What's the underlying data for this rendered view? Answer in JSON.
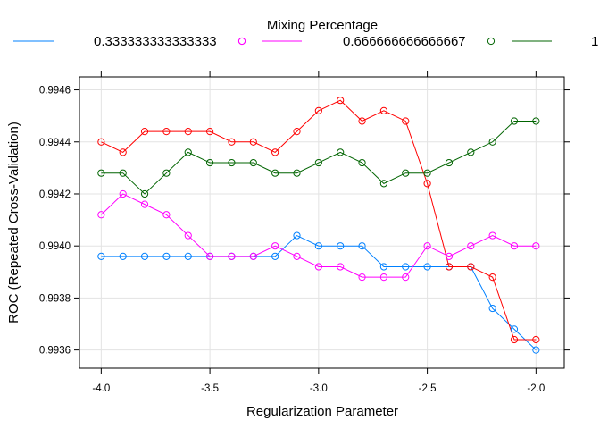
{
  "chart_data": {
    "type": "line",
    "xlabel": "Regularization Parameter",
    "ylabel": "ROC (Repeated Cross-Validation)",
    "legend_title": "Mixing Percentage",
    "legend_position": "top",
    "grid": true,
    "xlim": [
      -4.1,
      -1.87
    ],
    "ylim": [
      0.99353,
      0.99465
    ],
    "x_ticks": [
      -4.0,
      -3.5,
      -3.0,
      -2.5,
      -2.0
    ],
    "x_tick_labels": [
      "-4.0",
      "-3.5",
      "-3.0",
      "-2.5",
      "-2.0"
    ],
    "y_ticks": [
      0.9936,
      0.9938,
      0.994,
      0.9942,
      0.9944,
      0.9946
    ],
    "y_tick_labels": [
      "0.9936",
      "0.9938",
      "0.9940",
      "0.9942",
      "0.9944",
      "0.9946"
    ],
    "x": [
      -4.0,
      -3.9,
      -3.8,
      -3.7,
      -3.6,
      -3.5,
      -3.4,
      -3.3,
      -3.2,
      -3.1,
      -3.0,
      -2.9,
      -2.8,
      -2.7,
      -2.6,
      -2.5,
      -2.4,
      -2.3,
      -2.2,
      -2.1,
      -2.0
    ],
    "series": [
      {
        "name": "0.333333333333333",
        "color": "#0080ff",
        "values": [
          0.99396,
          0.99396,
          0.99396,
          0.99396,
          0.99396,
          0.99396,
          0.99396,
          0.99396,
          0.99396,
          0.99404,
          0.994,
          0.994,
          0.994,
          0.99392,
          0.99392,
          0.99392,
          0.99392,
          0.99392,
          0.99376,
          0.99368,
          0.9936
        ]
      },
      {
        "name": "0.666666666666667",
        "color": "#ff00ff",
        "values": [
          0.99412,
          0.9942,
          0.99416,
          0.99412,
          0.99404,
          0.99396,
          0.99396,
          0.99396,
          0.994,
          0.99396,
          0.99392,
          0.99392,
          0.99388,
          0.99388,
          0.99388,
          0.994,
          0.99396,
          0.994,
          0.99404,
          0.994,
          0.994
        ]
      },
      {
        "name": "1",
        "color": "#006400",
        "values": [
          0.99428,
          0.99428,
          0.9942,
          0.99428,
          0.99436,
          0.99432,
          0.99432,
          0.99432,
          0.99428,
          0.99428,
          0.99432,
          0.99436,
          0.99432,
          0.99424,
          0.99428,
          0.99428,
          0.99432,
          0.99436,
          0.9944,
          0.99448,
          0.99448
        ]
      },
      {
        "name": "",
        "color": "#ff0000",
        "values": [
          0.9944,
          0.99436,
          0.99444,
          0.99444,
          0.99444,
          0.99444,
          0.9944,
          0.9944,
          0.99436,
          0.99444,
          0.99452,
          0.99456,
          0.99448,
          0.99452,
          0.99448,
          0.99424,
          0.99392,
          0.99392,
          0.99388,
          0.99364,
          0.99364
        ]
      }
    ]
  }
}
